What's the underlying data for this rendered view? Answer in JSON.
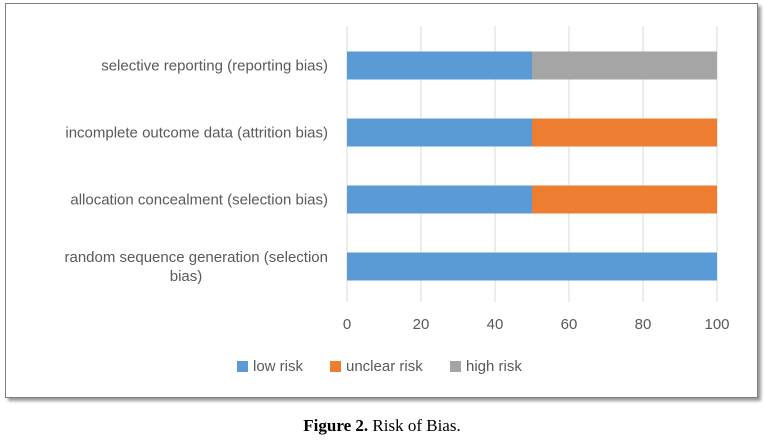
{
  "caption": {
    "label": "Figure 2.",
    "text": " Risk of Bias."
  },
  "chart_data": {
    "type": "bar",
    "orientation": "horizontal",
    "stacked": true,
    "categories": [
      [
        "random sequence generation (selection",
        "bias)"
      ],
      [
        "allocation concealment (selection bias)"
      ],
      [
        "incomplete outcome data (attrition bias)"
      ],
      [
        "selective reporting (reporting bias)"
      ]
    ],
    "series": [
      {
        "name": "low risk",
        "color": "#5b9bd5",
        "values": [
          100,
          50,
          50,
          50
        ]
      },
      {
        "name": "unclear risk",
        "color": "#ed7d31",
        "values": [
          0,
          50,
          50,
          0
        ]
      },
      {
        "name": "high risk",
        "color": "#a5a5a5",
        "values": [
          0,
          0,
          0,
          50
        ]
      }
    ],
    "xticks": [
      "0",
      "20",
      "40",
      "60",
      "80",
      "100"
    ],
    "xlim": [
      0,
      100
    ],
    "grid": true,
    "legend": "bottom"
  }
}
